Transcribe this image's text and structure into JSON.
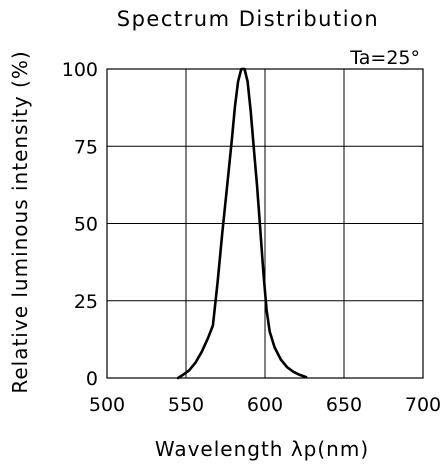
{
  "chart_data": {
    "type": "line",
    "title": "Spectrum Distribution",
    "annotation": "Ta=25°",
    "xlabel": "Wavelength λp(nm)",
    "ylabel": "Relative luminous intensity (%)",
    "xlim": [
      500,
      700
    ],
    "ylim": [
      0,
      100
    ],
    "x_ticks": [
      "500",
      "550",
      "600",
      "650",
      "700"
    ],
    "y_ticks": [
      "0",
      "25",
      "50",
      "75",
      "100"
    ],
    "grid": true,
    "series": [
      {
        "x": [
          545,
          548,
          552,
          556,
          560,
          564,
          567,
          570,
          573,
          576,
          579,
          581,
          583,
          585,
          587,
          589,
          591,
          593,
          595,
          597,
          599,
          601,
          603,
          606,
          610,
          614,
          618,
          622,
          626
        ],
        "values": [
          0,
          1,
          2.5,
          5,
          8.5,
          13,
          17,
          31,
          47,
          62,
          77,
          88,
          96,
          100,
          100,
          96,
          86,
          74,
          62,
          48,
          34,
          22,
          15,
          10,
          6,
          3.5,
          2,
          1,
          0.3
        ]
      }
    ]
  }
}
